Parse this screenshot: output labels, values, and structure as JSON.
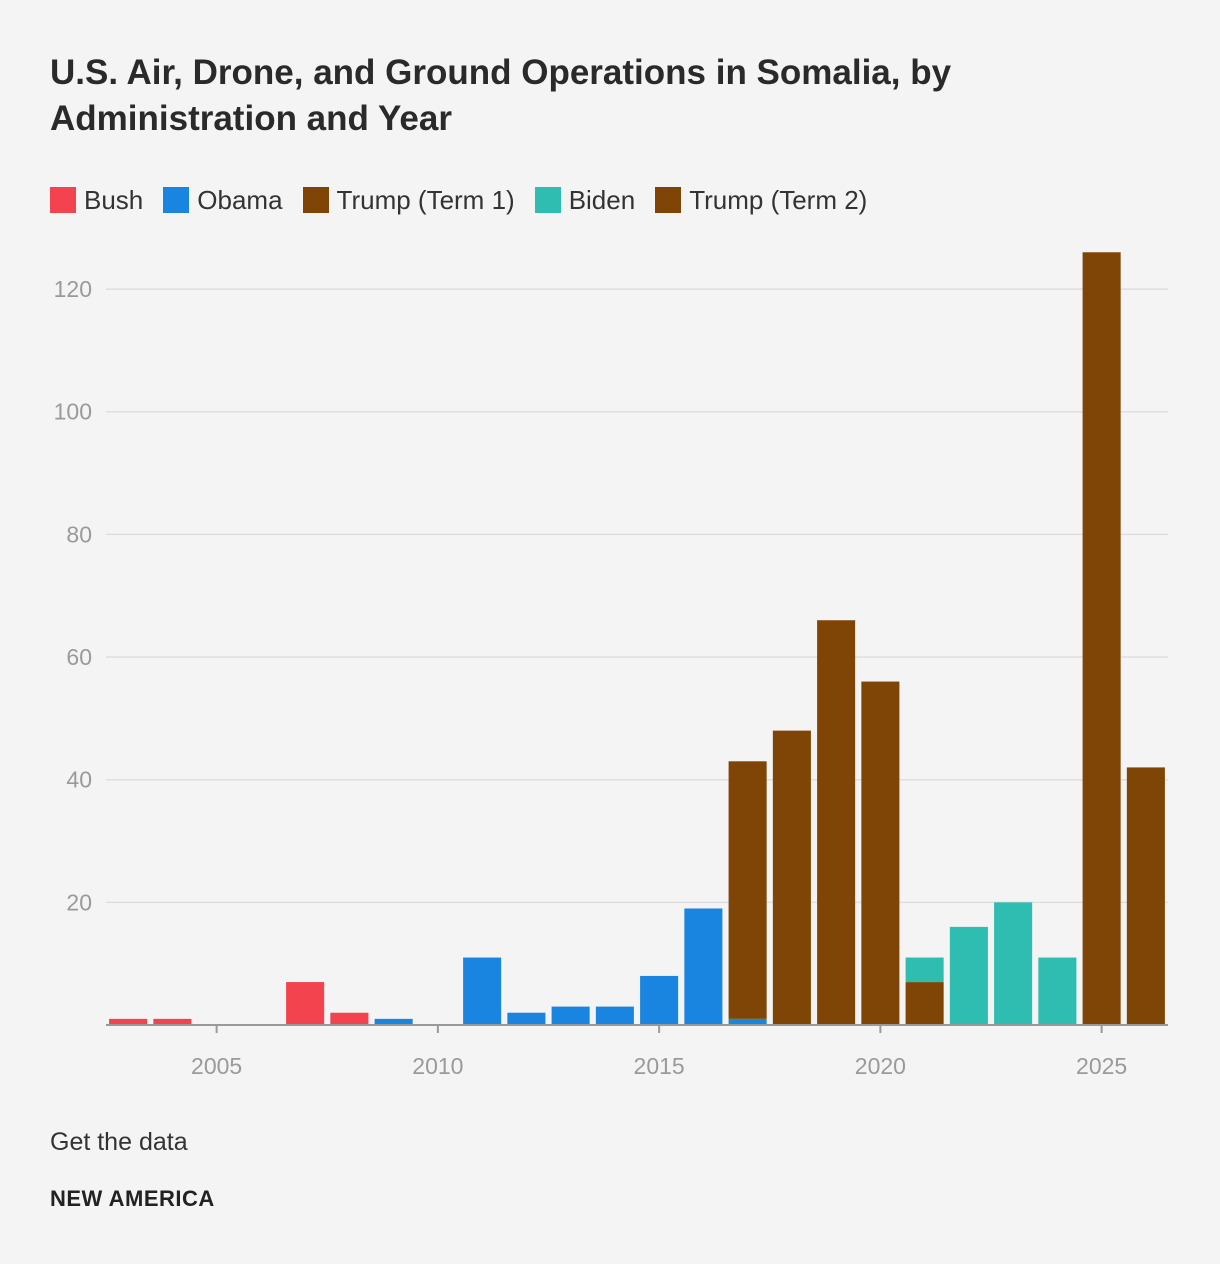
{
  "title": "U.S. Air, Drone, and Ground Operations in Somalia, by Administration and Year",
  "footer": {
    "get_data": "Get the data",
    "brand": "NEW AMERICA"
  },
  "colors": {
    "Bush": "#f2434f",
    "Obama": "#1a85e0",
    "Trump (Term 1)": "#7f4506",
    "Biden": "#2fbdb2",
    "Trump (Term 2)": "#7f4506",
    "grid": "#dedede",
    "axis": "#9a9a9a"
  },
  "chart_data": {
    "type": "bar",
    "stacked": true,
    "title": "U.S. Air, Drone, and Ground Operations in Somalia, by Administration and Year",
    "xlabel": "",
    "ylabel": "",
    "ylim": [
      0,
      128
    ],
    "xlim": [
      2002.5,
      2026.5
    ],
    "yticks": [
      20,
      40,
      60,
      80,
      100,
      120
    ],
    "xticks": [
      2005,
      2010,
      2015,
      2020,
      2025
    ],
    "legend_position": "top-left",
    "categories": [
      2003,
      2004,
      2005,
      2006,
      2007,
      2008,
      2009,
      2010,
      2011,
      2012,
      2013,
      2014,
      2015,
      2016,
      2017,
      2018,
      2019,
      2020,
      2021,
      2022,
      2023,
      2024,
      2025,
      2026
    ],
    "series": [
      {
        "name": "Bush",
        "values": [
          1,
          1,
          0,
          0,
          7,
          2,
          0,
          0,
          0,
          0,
          0,
          0,
          0,
          0,
          0,
          0,
          0,
          0,
          0,
          0,
          0,
          0,
          0,
          0
        ]
      },
      {
        "name": "Obama",
        "values": [
          0,
          0,
          0,
          0,
          0,
          0,
          1,
          0,
          11,
          2,
          3,
          3,
          8,
          19,
          1,
          0,
          0,
          0,
          0,
          0,
          0,
          0,
          0,
          0
        ]
      },
      {
        "name": "Trump (Term 1)",
        "values": [
          0,
          0,
          0,
          0,
          0,
          0,
          0,
          0,
          0,
          0,
          0,
          0,
          0,
          0,
          42,
          48,
          66,
          56,
          7,
          0,
          0,
          0,
          0,
          0
        ]
      },
      {
        "name": "Biden",
        "values": [
          0,
          0,
          0,
          0,
          0,
          0,
          0,
          0,
          0,
          0,
          0,
          0,
          0,
          0,
          0,
          0,
          0,
          0,
          4,
          16,
          20,
          11,
          0,
          0
        ]
      },
      {
        "name": "Trump (Term 2)",
        "values": [
          0,
          0,
          0,
          0,
          0,
          0,
          0,
          0,
          0,
          0,
          0,
          0,
          0,
          0,
          0,
          0,
          0,
          0,
          0,
          0,
          0,
          0,
          126,
          42
        ]
      }
    ]
  }
}
